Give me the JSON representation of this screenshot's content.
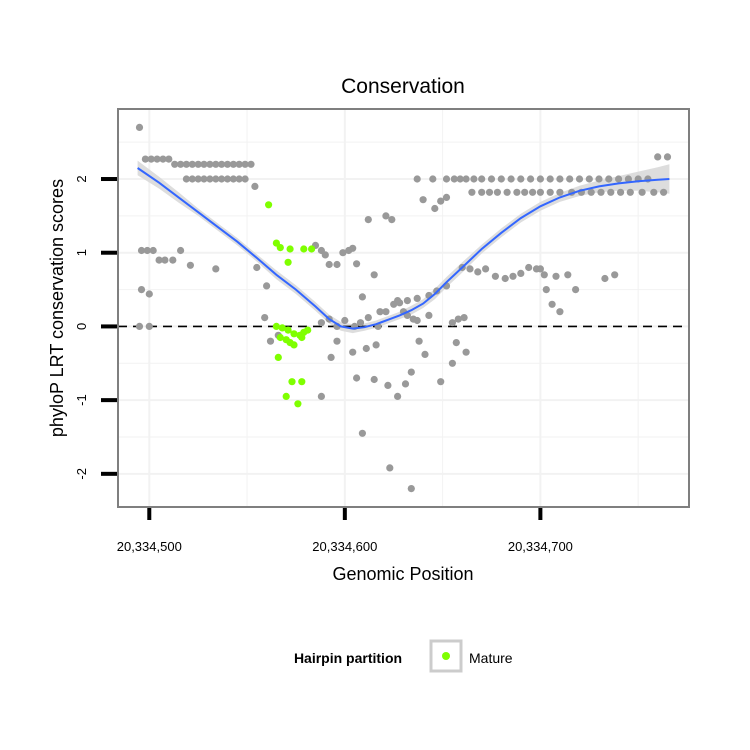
{
  "chart_data": {
    "type": "scatter",
    "title": "Conservation",
    "xlabel": "Genomic Position",
    "ylabel": "phyloP LRT conservation scores",
    "xlim": [
      20334484,
      20334776
    ],
    "ylim": [
      -2.45,
      2.95
    ],
    "x_ticks": [
      20334500,
      20334600,
      20334700
    ],
    "x_tick_labels": [
      "20,334,500",
      "20,334,600",
      "20,334,700"
    ],
    "y_ticks": [
      -2,
      -1,
      0,
      1,
      2
    ],
    "y_tick_labels": [
      "-2",
      "-1",
      "0",
      "1",
      "2"
    ],
    "grid": true,
    "reference_line": {
      "y": 0,
      "style": "dashed",
      "color": "#000000"
    },
    "legend": {
      "title": "Hairpin partition",
      "entries": [
        {
          "label": "Mature",
          "color": "#7FFF00"
        }
      ],
      "position": "bottom"
    },
    "colors": {
      "points": "#999999",
      "mature": "#7FFF00",
      "smooth": "#3366FF",
      "ribbon": "#D9D9D9",
      "panel_border": "#7F7F7F",
      "grid": "#F2F2F2"
    },
    "series": [
      {
        "name": "",
        "color": "#999999",
        "x": [
          20334495,
          20334498,
          20334501,
          20334504,
          20334507,
          20334510,
          20334513,
          20334516,
          20334519,
          20334522,
          20334525,
          20334528,
          20334531,
          20334534,
          20334537,
          20334540,
          20334543,
          20334546,
          20334549,
          20334552,
          20334519,
          20334522,
          20334525,
          20334528,
          20334531,
          20334534,
          20334537,
          20334540,
          20334543,
          20334546,
          20334549,
          20334496,
          20334499,
          20334502,
          20334505,
          20334508,
          20334512,
          20334516,
          20334521,
          20334534,
          20334496,
          20334500,
          20334495,
          20334500,
          20334554,
          20334555,
          20334560,
          20334559,
          20334562,
          20334566,
          20334585,
          20334588,
          20334590,
          20334592,
          20334596,
          20334599,
          20334602,
          20334604,
          20334606,
          20334609,
          20334612,
          20334615,
          20334618,
          20334621,
          20334624,
          20334627,
          20334630,
          20334632,
          20334635,
          20334637,
          20334640,
          20334643,
          20334646,
          20334649,
          20334652,
          20334655,
          20334658,
          20334661,
          20334588,
          20334592,
          20334596,
          20334600,
          20334605,
          20334608,
          20334612,
          20334617,
          20334621,
          20334625,
          20334628,
          20334632,
          20334637,
          20334643,
          20334647,
          20334652,
          20334596,
          20334606,
          20334611,
          20334615,
          20334622,
          20334627,
          20334631,
          20334634,
          20334641,
          20334649,
          20334655,
          20334657,
          20334662,
          20334609,
          20334616,
          20334623,
          20334638,
          20334634,
          20334604,
          20334588,
          20334593,
          20334637,
          20334645,
          20334652,
          20334656,
          20334659,
          20334662,
          20334666,
          20334670,
          20334675,
          20334680,
          20334685,
          20334690,
          20334695,
          20334700,
          20334705,
          20334710,
          20334715,
          20334720,
          20334725,
          20334730,
          20334735,
          20334740,
          20334745,
          20334750,
          20334755,
          20334760,
          20334765,
          20334665,
          20334670,
          20334674,
          20334678,
          20334683,
          20334688,
          20334692,
          20334696,
          20334700,
          20334705,
          20334710,
          20334716,
          20334721,
          20334726,
          20334731,
          20334736,
          20334741,
          20334746,
          20334752,
          20334758,
          20334763,
          20334660,
          20334664,
          20334668,
          20334672,
          20334677,
          20334682,
          20334686,
          20334690,
          20334694,
          20334698,
          20334702,
          20334708,
          20334714,
          20334718,
          20334733,
          20334738,
          20334700,
          20334703,
          20334706,
          20334710
        ],
        "y": [
          2.7,
          2.27,
          2.27,
          2.27,
          2.27,
          2.27,
          2.2,
          2.2,
          2.2,
          2.2,
          2.2,
          2.2,
          2.2,
          2.2,
          2.2,
          2.2,
          2.2,
          2.2,
          2.2,
          2.2,
          2.0,
          2.0,
          2.0,
          2.0,
          2.0,
          2.0,
          2.0,
          2.0,
          2.0,
          2.0,
          2.0,
          1.03,
          1.03,
          1.03,
          0.9,
          0.9,
          0.9,
          1.03,
          0.83,
          0.78,
          0.5,
          0.44,
          0.0,
          0.0,
          1.9,
          0.8,
          0.55,
          0.12,
          -0.2,
          -0.12,
          1.1,
          1.03,
          0.97,
          0.84,
          0.84,
          1.0,
          1.03,
          1.06,
          0.85,
          0.4,
          1.45,
          0.7,
          0.2,
          1.5,
          1.45,
          0.35,
          0.2,
          0.15,
          0.1,
          0.08,
          1.72,
          0.15,
          1.6,
          1.7,
          1.75,
          0.05,
          0.1,
          0.12,
          0.05,
          0.1,
          0.0,
          0.08,
          0.0,
          0.05,
          0.12,
          0.0,
          0.2,
          0.3,
          0.32,
          0.35,
          0.38,
          0.42,
          0.48,
          0.55,
          -0.2,
          -0.7,
          -0.3,
          -0.72,
          -0.8,
          -0.95,
          -0.78,
          -0.62,
          -0.38,
          -0.75,
          -0.5,
          -0.22,
          -0.35,
          -1.45,
          -0.25,
          -1.92,
          -0.2,
          -2.2,
          -0.35,
          -0.95,
          -0.42,
          2.0,
          2.0,
          2.0,
          2.0,
          2.0,
          2.0,
          2.0,
          2.0,
          2.0,
          2.0,
          2.0,
          2.0,
          2.0,
          2.0,
          2.0,
          2.0,
          2.0,
          2.0,
          2.0,
          2.0,
          2.0,
          2.0,
          2.0,
          2.0,
          2.0,
          2.3,
          2.3,
          1.82,
          1.82,
          1.82,
          1.82,
          1.82,
          1.82,
          1.82,
          1.82,
          1.82,
          1.82,
          1.82,
          1.82,
          1.82,
          1.82,
          1.82,
          1.82,
          1.82,
          1.82,
          1.82,
          1.82,
          1.82,
          0.8,
          0.78,
          0.74,
          0.78,
          0.68,
          0.65,
          0.68,
          0.72,
          0.8,
          0.78,
          0.7,
          0.68,
          0.7,
          0.5,
          0.65,
          0.7,
          0.78,
          0.5,
          0.3,
          0.2
        ]
      },
      {
        "name": "Mature",
        "color": "#7FFF00",
        "x": [
          20334561,
          20334565,
          20334567,
          20334572,
          20334579,
          20334583,
          20334571,
          20334565,
          20334568,
          20334571,
          20334574,
          20334577,
          20334579,
          20334581,
          20334567,
          20334570,
          20334572,
          20334574,
          20334578,
          20334566,
          20334573,
          20334578,
          20334570,
          20334576
        ],
        "y": [
          1.65,
          1.13,
          1.07,
          1.05,
          1.05,
          1.05,
          0.87,
          0.0,
          -0.02,
          -0.05,
          -0.1,
          -0.12,
          -0.08,
          -0.05,
          -0.15,
          -0.18,
          -0.22,
          -0.25,
          -0.15,
          -0.42,
          -0.75,
          -0.75,
          -0.95,
          -1.05
        ]
      }
    ],
    "smooth": {
      "name": "",
      "color": "#3366FF",
      "x": [
        20334494,
        20334505,
        20334515,
        20334525,
        20334535,
        20334545,
        20334555,
        20334565,
        20334575,
        20334585,
        20334592,
        20334598,
        20334604,
        20334610,
        20334616,
        20334622,
        20334628,
        20334634,
        20334640,
        20334646,
        20334652,
        20334660,
        20334670,
        20334680,
        20334690,
        20334700,
        20334710,
        20334720,
        20334730,
        20334740,
        20334750,
        20334760,
        20334766
      ],
      "y": [
        2.15,
        1.95,
        1.75,
        1.55,
        1.35,
        1.15,
        0.93,
        0.7,
        0.5,
        0.27,
        0.1,
        0.0,
        -0.03,
        -0.01,
        0.03,
        0.09,
        0.15,
        0.22,
        0.31,
        0.44,
        0.6,
        0.8,
        1.05,
        1.27,
        1.47,
        1.63,
        1.75,
        1.84,
        1.9,
        1.94,
        1.97,
        1.99,
        2.0
      ],
      "lower": [
        2.05,
        1.87,
        1.68,
        1.5,
        1.3,
        1.1,
        0.88,
        0.64,
        0.44,
        0.21,
        0.04,
        -0.06,
        -0.09,
        -0.06,
        -0.02,
        0.04,
        0.1,
        0.16,
        0.25,
        0.37,
        0.53,
        0.73,
        0.99,
        1.21,
        1.41,
        1.57,
        1.69,
        1.77,
        1.82,
        1.84,
        1.84,
        1.82,
        1.8
      ],
      "upper": [
        2.25,
        2.03,
        1.82,
        1.6,
        1.4,
        1.2,
        0.98,
        0.76,
        0.56,
        0.33,
        0.16,
        0.06,
        0.03,
        0.04,
        0.08,
        0.14,
        0.2,
        0.28,
        0.37,
        0.51,
        0.67,
        0.87,
        1.11,
        1.33,
        1.53,
        1.69,
        1.81,
        1.91,
        1.98,
        2.04,
        2.1,
        2.16,
        2.2
      ]
    }
  }
}
